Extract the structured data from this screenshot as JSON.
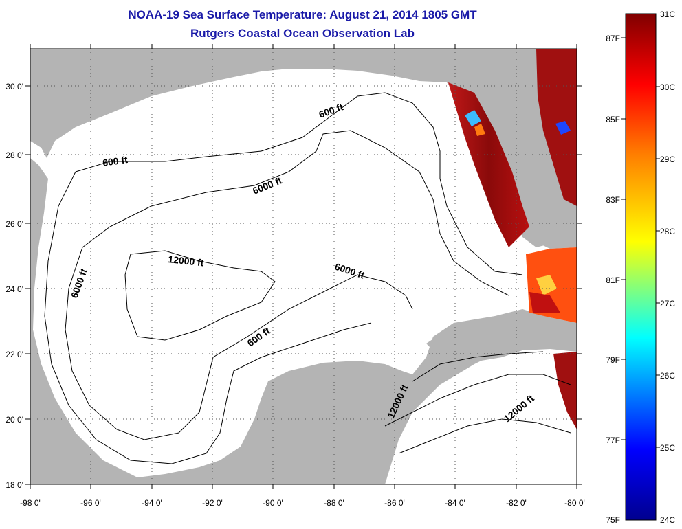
{
  "title": {
    "line1": "NOAA-19 Sea Surface Temperature:  August 21, 2014 1805 GMT",
    "line2": "Rutgers Coastal Ocean Observation Lab"
  },
  "map": {
    "lon_range": [
      -98,
      -80
    ],
    "lat_range": [
      18,
      31
    ],
    "lon_labels": [
      "-98 0'",
      "-96 0'",
      "-94 0'",
      "-92 0'",
      "-90 0'",
      "-88 0'",
      "-86 0'",
      "-84 0'",
      "-82 0'",
      "-80 0'"
    ],
    "lat_labels": [
      "18 0'",
      "20 0'",
      "22 0'",
      "24 0'",
      "26 0'",
      "28 0'",
      "30 0'"
    ],
    "contour_labels": [
      "600 ft",
      "600 ft",
      "6000 ft",
      "12000 ft",
      "6000 ft",
      "6000 ft",
      "600 ft",
      "12000 ft",
      "12000 ft"
    ],
    "colors": {
      "land": "#b4b4b4",
      "ocean": "#ffffff",
      "sst_hot": "#a01010"
    }
  },
  "colorbar": {
    "celsius_labels": [
      "31C",
      "30C",
      "29C",
      "28C",
      "27C",
      "26C",
      "25C",
      "24C"
    ],
    "fahrenheit_labels": [
      "87F",
      "85F",
      "83F",
      "81F",
      "79F",
      "77F",
      "75F"
    ],
    "range_c": [
      24,
      31
    ],
    "colors": [
      "#00008f",
      "#0000ff",
      "#00ffff",
      "#ffff00",
      "#ff8000",
      "#ff0000",
      "#800000"
    ]
  }
}
